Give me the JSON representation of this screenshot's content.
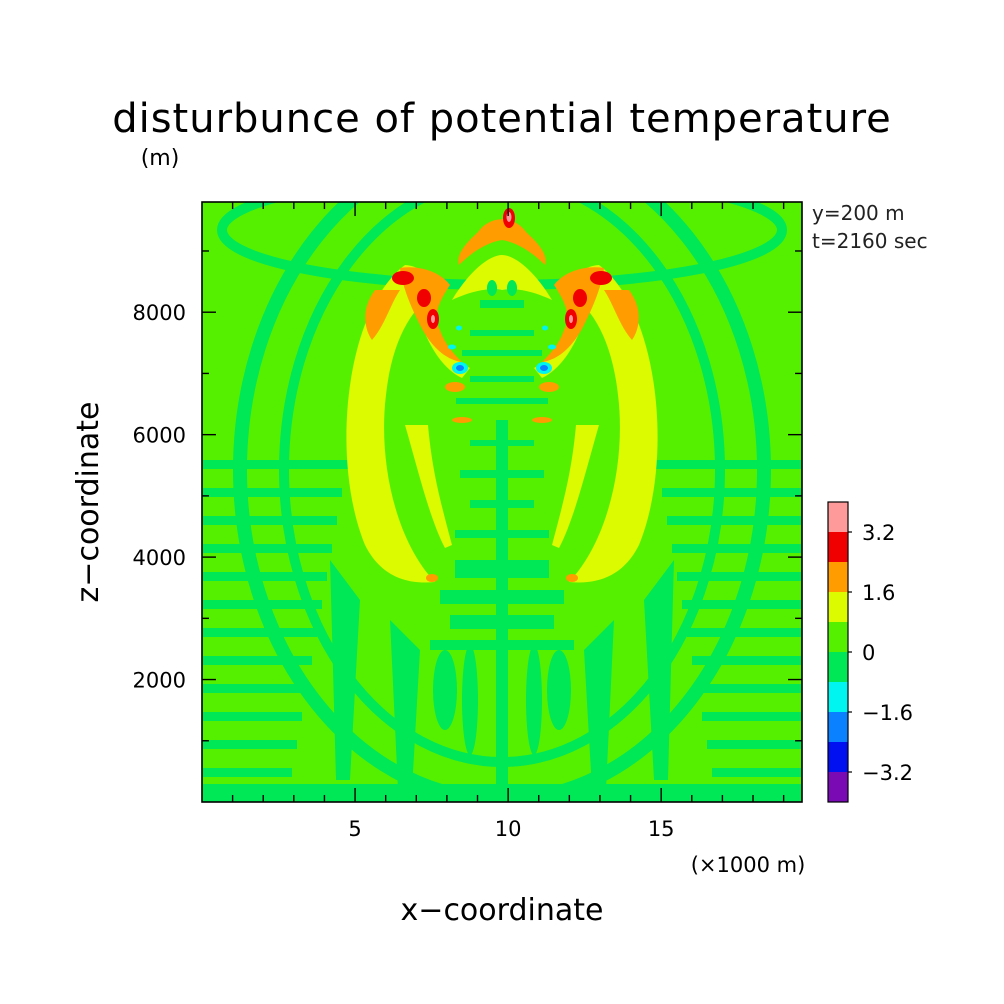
{
  "chart_data": {
    "type": "heatmap",
    "title": "disturbunce of potential temperature",
    "z_unit_label": "(m)",
    "xlabel": "x−coordinate",
    "ylabel": "z−coordinate",
    "x_unit_label": "(×1000 m)",
    "annotation_y": "y=200 m",
    "annotation_t": "t=2160 sec",
    "xlim": [
      0,
      19.6
    ],
    "ylim": [
      0,
      9800
    ],
    "x_ticks": [
      {
        "value": 5,
        "label": "5"
      },
      {
        "value": 10,
        "label": "10"
      },
      {
        "value": 15,
        "label": "15"
      }
    ],
    "y_ticks": [
      {
        "value": 2000,
        "label": "2000"
      },
      {
        "value": 4000,
        "label": "4000"
      },
      {
        "value": 6000,
        "label": "6000"
      },
      {
        "value": 8000,
        "label": "8000"
      }
    ],
    "x_minor_ticks": [
      1,
      2,
      3,
      4,
      6,
      7,
      8,
      9,
      11,
      12,
      13,
      14,
      16,
      17,
      18,
      19
    ],
    "y_minor_ticks": [
      1000,
      3000,
      5000,
      7000,
      9000
    ],
    "colorbar": {
      "levels": [
        -4.0,
        -3.2,
        -2.4,
        -1.6,
        -0.8,
        0,
        0.8,
        1.6,
        2.4,
        3.2,
        4.0
      ],
      "colors": [
        "#7a0ab4",
        "#0010f0",
        "#0a82ff",
        "#00f5f0",
        "#00e855",
        "#55f000",
        "#dcfa00",
        "#ff9c00",
        "#f00000",
        "#ff9a9a"
      ],
      "labels": [
        {
          "value": -3.2,
          "label": "−3.2"
        },
        {
          "value": -1.6,
          "label": "−1.6"
        },
        {
          "value": 0,
          "label": "0"
        },
        {
          "value": 1.6,
          "label": "1.6"
        },
        {
          "value": 3.2,
          "label": "3.2"
        }
      ]
    },
    "field_features": [
      {
        "x": 10.1,
        "z": 9500,
        "value": 3.6
      },
      {
        "x": 6.9,
        "z": 8650,
        "value": 2.8
      },
      {
        "x": 7.6,
        "z": 8300,
        "value": 2.8
      },
      {
        "x": 7.9,
        "z": 8000,
        "value": 3.6
      },
      {
        "x": 13.3,
        "z": 8650,
        "value": 2.8
      },
      {
        "x": 12.6,
        "z": 8300,
        "value": 2.8
      },
      {
        "x": 12.3,
        "z": 8000,
        "value": 3.6
      },
      {
        "x": 8.6,
        "z": 7200,
        "value": -1.2
      },
      {
        "x": 11.6,
        "z": 7200,
        "value": -1.2
      },
      {
        "x": 7.5,
        "z": 6500,
        "value": 1.2
      },
      {
        "x": 12.7,
        "z": 6500,
        "value": 1.2
      }
    ],
    "grid": false
  }
}
